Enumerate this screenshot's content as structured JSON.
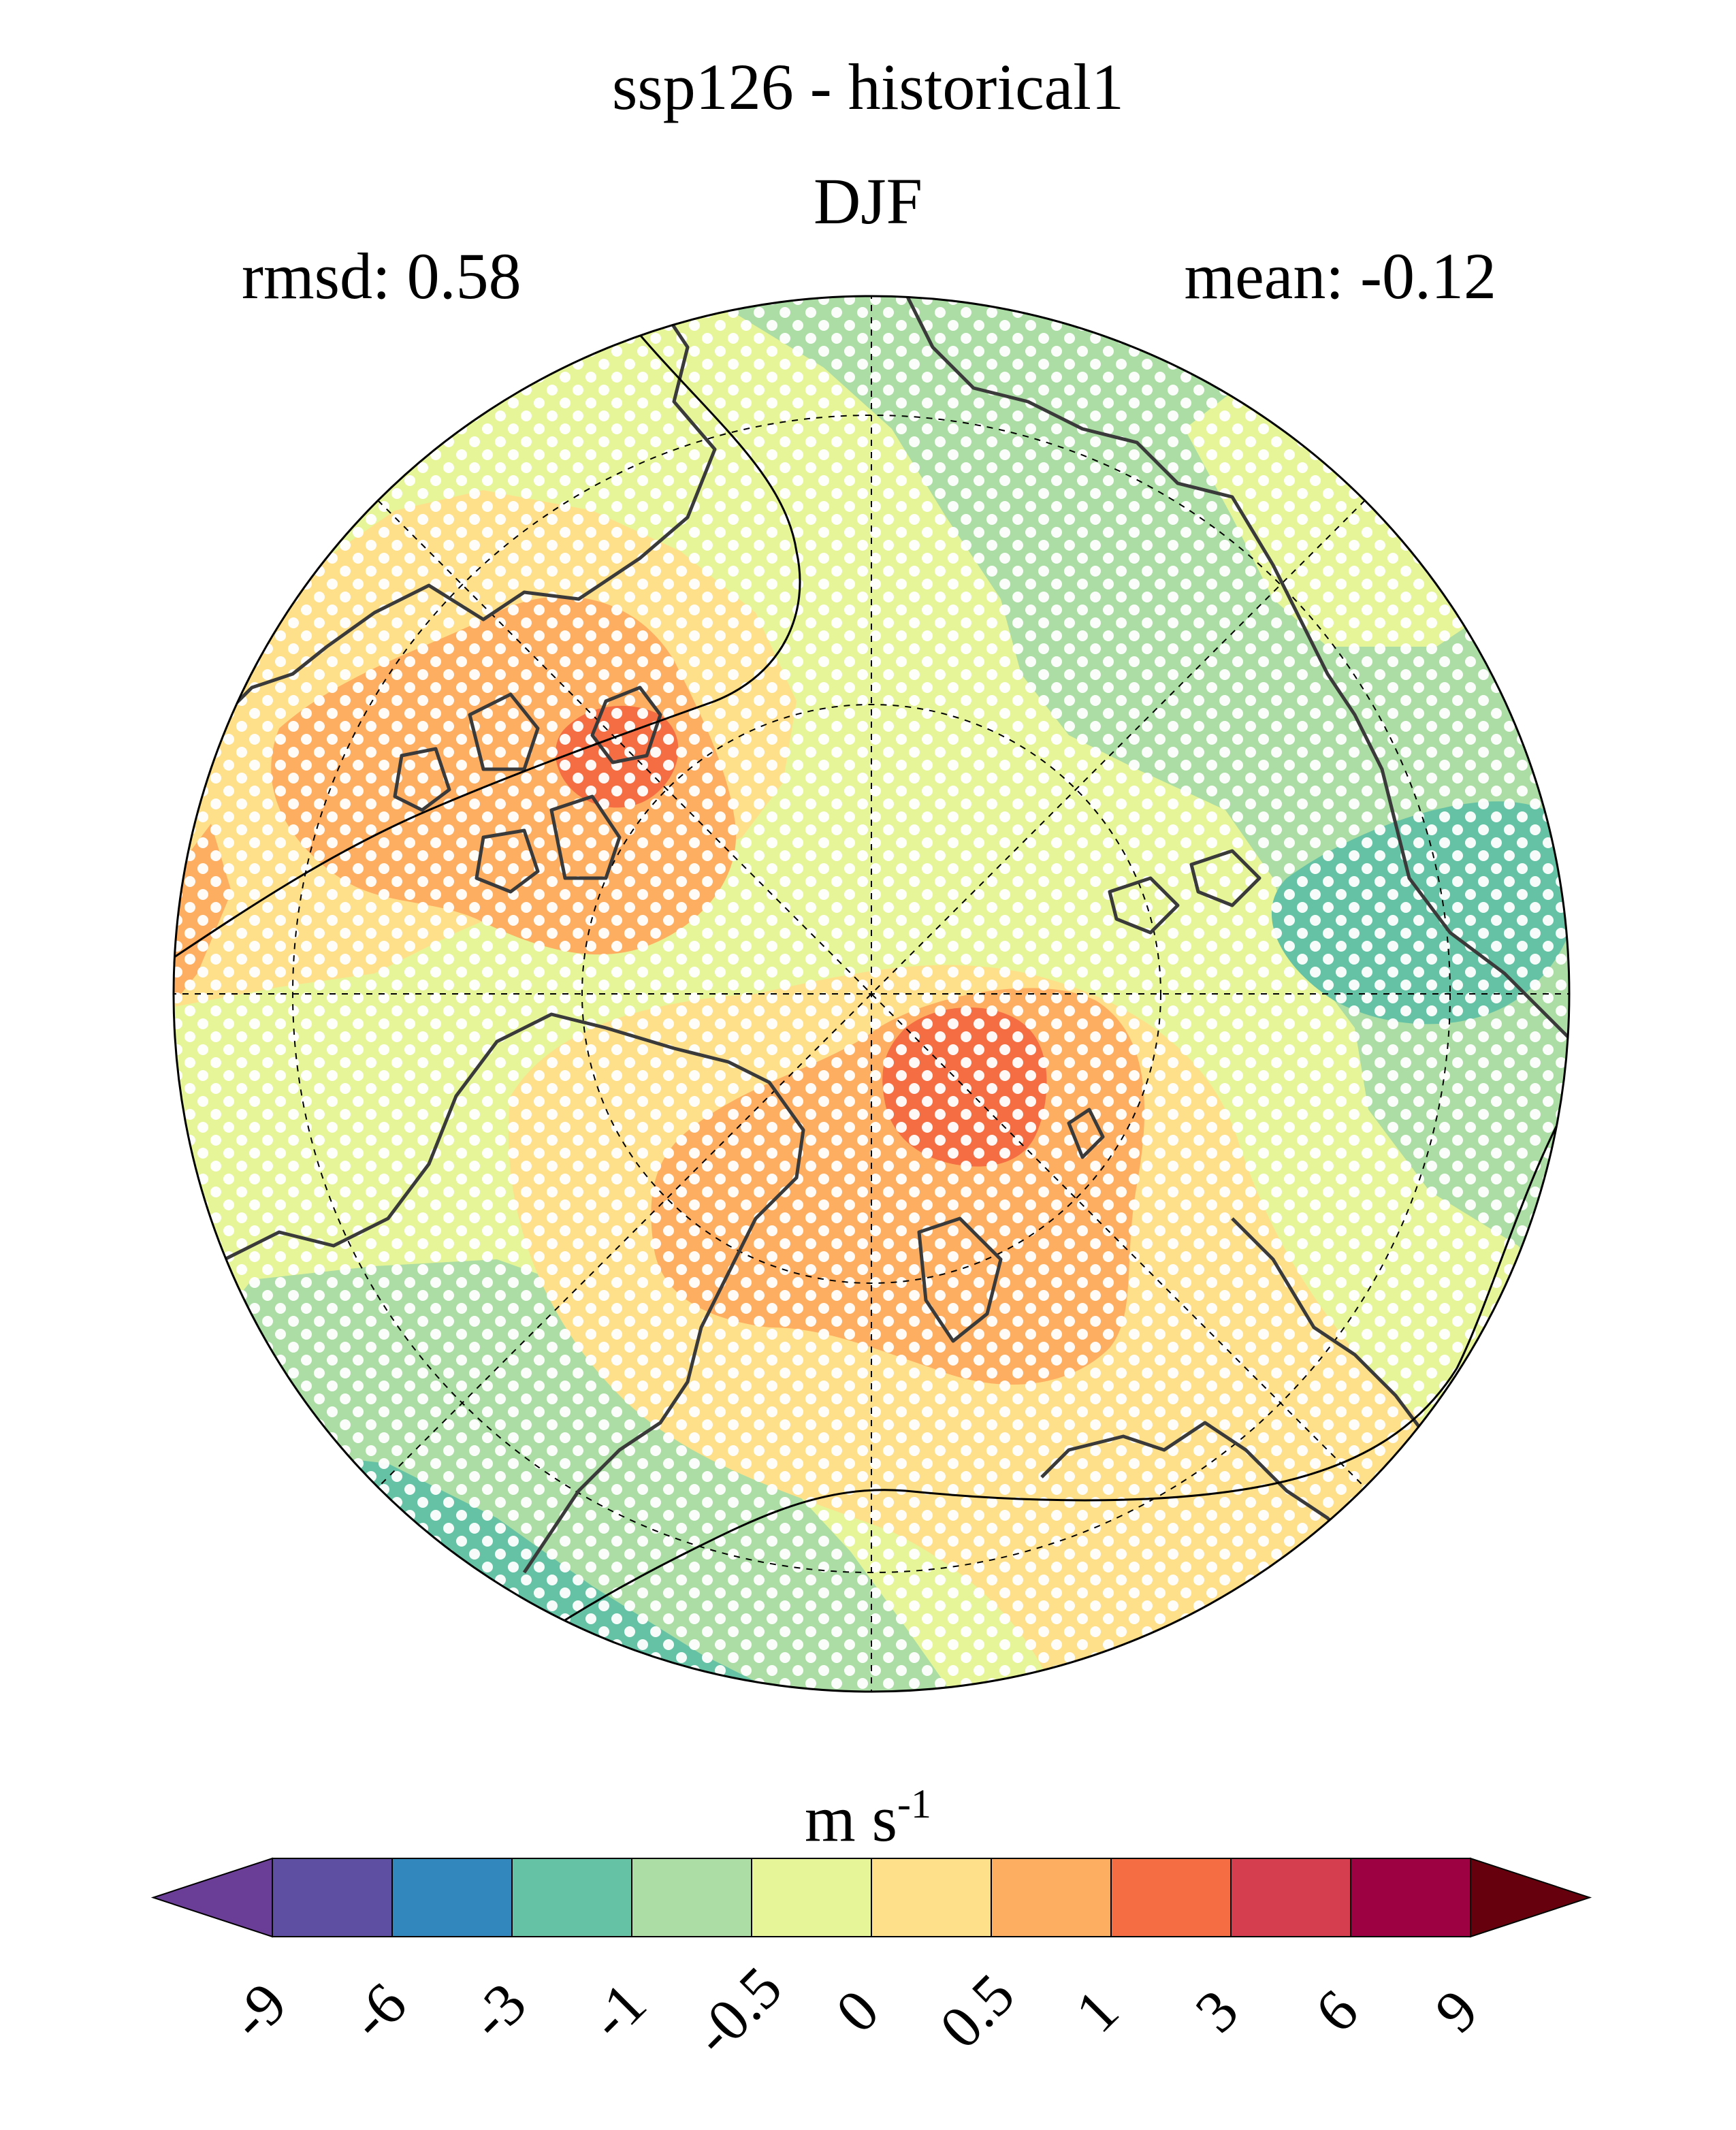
{
  "title": "ssp126 - historical1",
  "subtitle": "DJF",
  "stats": {
    "rmsd": "rmsd: 0.58",
    "mean": "mean: -0.12"
  },
  "units": {
    "base": "m s",
    "exponent": "-1"
  },
  "map": {
    "projection": "north-polar-stereographic",
    "background_color": "#e6f598",
    "graticule": "dashed",
    "stippling": "white dots over most of the domain",
    "coastlines": true
  },
  "colorbar": {
    "levels": [
      "-9",
      "-6",
      "-3",
      "-1",
      "-0.5",
      "0",
      "0.5",
      "1",
      "3",
      "6",
      "9"
    ],
    "colors": [
      "#5e4fa2",
      "#3288bd",
      "#66c2a5",
      "#abdda4",
      "#e6f598",
      "#fee08b",
      "#fdae61",
      "#f46d43",
      "#d53e4f",
      "#9e0142"
    ],
    "under_color": "#6a3d96",
    "over_color": "#67000d",
    "extend": "both"
  }
}
